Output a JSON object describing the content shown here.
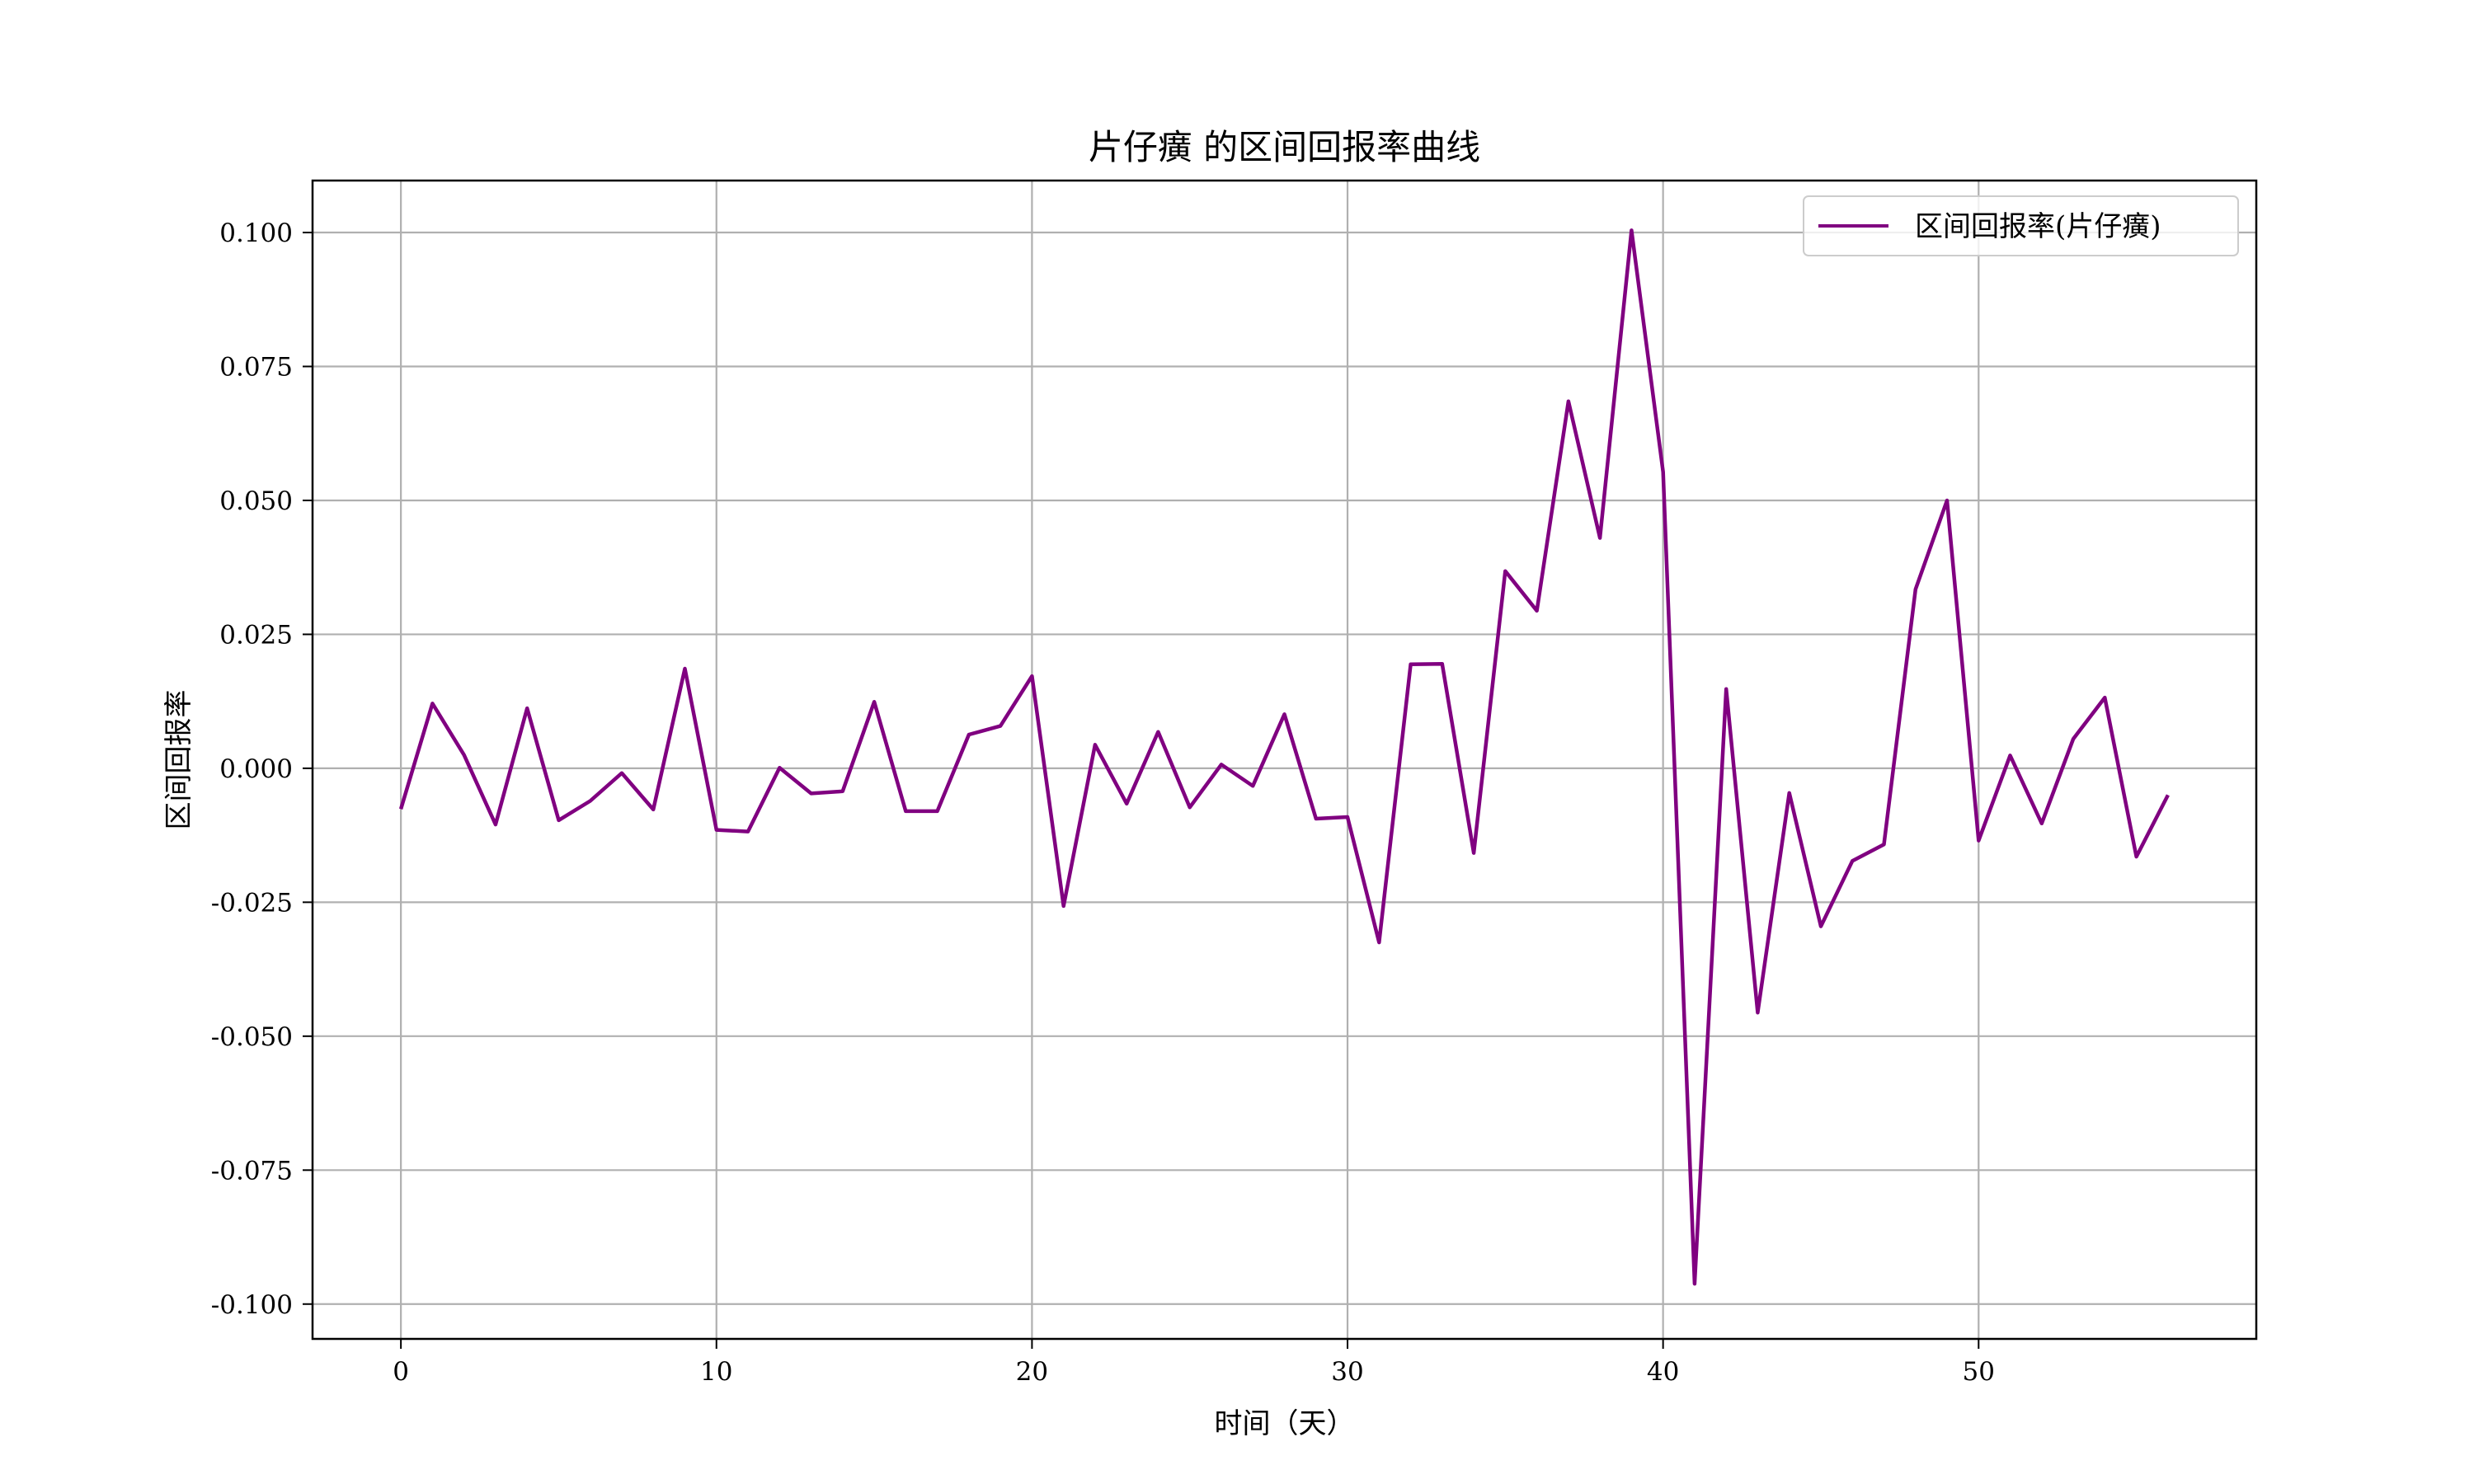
{
  "chart_data": {
    "type": "line",
    "title": "片仔癀 的区间回报率曲线",
    "xlabel": "时间（天）",
    "ylabel": "区间回报率",
    "xlim": [
      -2.8,
      58.8
    ],
    "ylim": [
      -0.1065,
      0.1097
    ],
    "xticks": [
      0,
      10,
      20,
      30,
      40,
      50
    ],
    "xtick_labels": [
      "0",
      "10",
      "20",
      "30",
      "40",
      "50"
    ],
    "yticks": [
      -0.1,
      -0.075,
      -0.05,
      -0.025,
      0.0,
      0.025,
      0.05,
      0.075,
      0.1
    ],
    "ytick_labels": [
      "-0.100",
      "-0.075",
      "-0.050",
      "-0.025",
      "0.000",
      "0.025",
      "0.050",
      "0.075",
      "0.100"
    ],
    "grid": true,
    "legend_position": "top-right",
    "series": [
      {
        "name": "区间回报率(片仔癀)",
        "color": "#800080",
        "x": [
          0,
          1,
          2,
          3,
          4,
          5,
          6,
          7,
          8,
          9,
          10,
          11,
          12,
          13,
          14,
          15,
          16,
          17,
          18,
          19,
          20,
          21,
          22,
          23,
          24,
          25,
          26,
          27,
          28,
          29,
          30,
          31,
          32,
          33,
          34,
          35,
          36,
          37,
          38,
          39,
          40,
          41,
          42,
          43,
          44,
          45,
          46,
          47,
          48,
          49,
          50,
          51,
          52,
          53,
          54,
          55,
          56
        ],
        "values": [
          -0.0076,
          0.0121,
          0.0025,
          -0.0105,
          0.0112,
          -0.0097,
          -0.0061,
          -0.0009,
          -0.0077,
          0.0186,
          -0.0115,
          -0.0118,
          0.0001,
          -0.0047,
          -0.0043,
          0.0124,
          -0.008,
          -0.008,
          0.0063,
          0.0079,
          0.0172,
          -0.0257,
          0.0044,
          -0.0066,
          0.0068,
          -0.0073,
          0.0007,
          -0.0033,
          0.0101,
          -0.0094,
          -0.0091,
          -0.0325,
          0.0194,
          0.0195,
          -0.0158,
          0.0368,
          0.0294,
          0.0685,
          0.043,
          0.1004,
          0.0553,
          -0.0962,
          0.0148,
          -0.0456,
          -0.0046,
          -0.0295,
          -0.0173,
          -0.0142,
          0.0334,
          0.05,
          -0.0135,
          0.0024,
          -0.0103,
          0.0055,
          0.0132,
          -0.0165,
          -0.005
        ]
      }
    ]
  }
}
